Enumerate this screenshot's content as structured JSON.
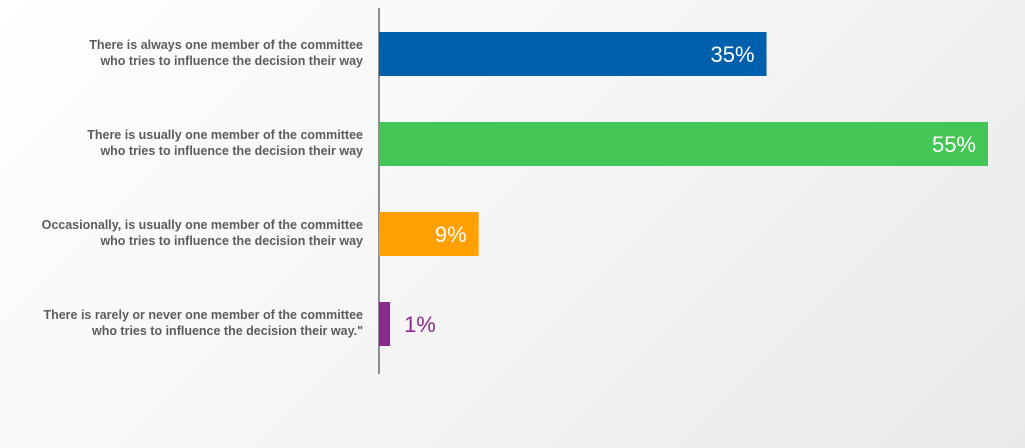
{
  "chart_data": {
    "type": "bar",
    "orientation": "horizontal",
    "title": "",
    "xlabel": "",
    "ylabel": "",
    "xlim": [
      0,
      55
    ],
    "grid": false,
    "categories": [
      [
        "There is always one member of the committee",
        "who tries to influence the decision their way"
      ],
      [
        "There is usually one member of the committee",
        "who tries to influence the decision their way"
      ],
      [
        "Occasionally, is usually one member of the committee",
        "who tries to influence the decision their way"
      ],
      [
        "There is rarely or never one member of the committee",
        "who tries to influence the decision their way.\""
      ]
    ],
    "values": [
      35,
      55,
      9,
      1
    ],
    "value_labels": [
      "35%",
      "55%",
      "9%",
      "1%"
    ],
    "colors": [
      "#0060ac",
      "#43c653",
      "#ff9f00",
      "#8b2a8e"
    ],
    "value_label_colors": [
      "#ffffff",
      "#ffffff",
      "#ffffff",
      "#8b2a8e"
    ]
  }
}
